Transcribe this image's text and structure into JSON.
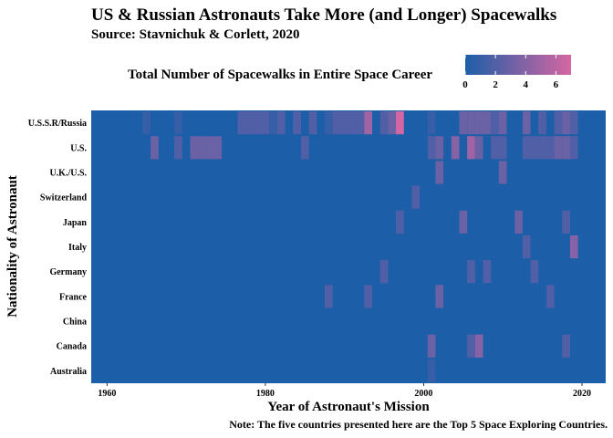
{
  "chart_data": {
    "type": "heatmap",
    "title": "US & Russian Astronauts Take More (and Longer) Spacewalks",
    "subtitle": "Source: Stavnichuk & Corlett, 2020",
    "xlabel": "Year of Astronaut's Mission",
    "ylabel": "Nationality of Astronaut",
    "note": "Note: The five countries presented here are the Top 5 Space Exploring Countries.",
    "legend": {
      "title": "Total Number of Spacewalks in Entire Space Career",
      "placement": "top",
      "ticks": [
        0,
        2,
        4,
        6
      ],
      "range": [
        0,
        7
      ],
      "low_color": "#1c5ea8",
      "high_color": "#d566a2"
    },
    "xlim": [
      1958,
      2023
    ],
    "x_ticks": [
      1960,
      1980,
      2000,
      2020
    ],
    "categories": [
      "Australia",
      "Canada",
      "China",
      "France",
      "Germany",
      "Italy",
      "Japan",
      "Switzerland",
      "U.K./U.S.",
      "U.S.",
      "U.S.S.R/Russia"
    ],
    "background_value": 0,
    "cells": [
      {
        "country": "U.S.S.R/Russia",
        "year": 1965,
        "value": 1
      },
      {
        "country": "U.S.S.R/Russia",
        "year": 1969,
        "value": 1
      },
      {
        "country": "U.S.S.R/Russia",
        "year": 1977,
        "value": 2
      },
      {
        "country": "U.S.S.R/Russia",
        "year": 1978,
        "value": 2
      },
      {
        "country": "U.S.S.R/Russia",
        "year": 1979,
        "value": 2
      },
      {
        "country": "U.S.S.R/Russia",
        "year": 1980,
        "value": 2
      },
      {
        "country": "U.S.S.R/Russia",
        "year": 1981,
        "value": 1
      },
      {
        "country": "U.S.S.R/Russia",
        "year": 1982,
        "value": 2
      },
      {
        "country": "U.S.S.R/Russia",
        "year": 1984,
        "value": 2
      },
      {
        "country": "U.S.S.R/Russia",
        "year": 1986,
        "value": 2
      },
      {
        "country": "U.S.S.R/Russia",
        "year": 1988,
        "value": 1
      },
      {
        "country": "U.S.S.R/Russia",
        "year": 1989,
        "value": 2
      },
      {
        "country": "U.S.S.R/Russia",
        "year": 1990,
        "value": 2
      },
      {
        "country": "U.S.S.R/Russia",
        "year": 1991,
        "value": 2
      },
      {
        "country": "U.S.S.R/Russia",
        "year": 1992,
        "value": 2
      },
      {
        "country": "U.S.S.R/Russia",
        "year": 1993,
        "value": 5
      },
      {
        "country": "U.S.S.R/Russia",
        "year": 1995,
        "value": 2
      },
      {
        "country": "U.S.S.R/Russia",
        "year": 1996,
        "value": 3
      },
      {
        "country": "U.S.S.R/Russia",
        "year": 1997,
        "value": 7
      },
      {
        "country": "U.S.S.R/Russia",
        "year": 2001,
        "value": 1
      },
      {
        "country": "U.S.S.R/Russia",
        "year": 2005,
        "value": 3
      },
      {
        "country": "U.S.S.R/Russia",
        "year": 2006,
        "value": 3
      },
      {
        "country": "U.S.S.R/Russia",
        "year": 2007,
        "value": 3
      },
      {
        "country": "U.S.S.R/Russia",
        "year": 2008,
        "value": 3
      },
      {
        "country": "U.S.S.R/Russia",
        "year": 2009,
        "value": 2
      },
      {
        "country": "U.S.S.R/Russia",
        "year": 2010,
        "value": 3
      },
      {
        "country": "U.S.S.R/Russia",
        "year": 2013,
        "value": 3
      },
      {
        "country": "U.S.S.R/Russia",
        "year": 2015,
        "value": 2
      },
      {
        "country": "U.S.S.R/Russia",
        "year": 2017,
        "value": 2
      },
      {
        "country": "U.S.S.R/Russia",
        "year": 2018,
        "value": 3
      },
      {
        "country": "U.S.S.R/Russia",
        "year": 2019,
        "value": 2
      },
      {
        "country": "U.S.",
        "year": 1966,
        "value": 3
      },
      {
        "country": "U.S.",
        "year": 1969,
        "value": 2
      },
      {
        "country": "U.S.",
        "year": 1971,
        "value": 3
      },
      {
        "country": "U.S.",
        "year": 1972,
        "value": 3
      },
      {
        "country": "U.S.",
        "year": 1973,
        "value": 3
      },
      {
        "country": "U.S.",
        "year": 1974,
        "value": 3
      },
      {
        "country": "U.S.",
        "year": 1985,
        "value": 2
      },
      {
        "country": "U.S.",
        "year": 2001,
        "value": 2
      },
      {
        "country": "U.S.",
        "year": 2002,
        "value": 3
      },
      {
        "country": "U.S.",
        "year": 2004,
        "value": 4
      },
      {
        "country": "U.S.",
        "year": 2006,
        "value": 5
      },
      {
        "country": "U.S.",
        "year": 2007,
        "value": 3
      },
      {
        "country": "U.S.",
        "year": 2009,
        "value": 2
      },
      {
        "country": "U.S.",
        "year": 2010,
        "value": 2
      },
      {
        "country": "U.S.",
        "year": 2013,
        "value": 2
      },
      {
        "country": "U.S.",
        "year": 2014,
        "value": 2
      },
      {
        "country": "U.S.",
        "year": 2015,
        "value": 2
      },
      {
        "country": "U.S.",
        "year": 2016,
        "value": 2
      },
      {
        "country": "U.S.",
        "year": 2017,
        "value": 3
      },
      {
        "country": "U.S.",
        "year": 2018,
        "value": 3
      },
      {
        "country": "U.S.",
        "year": 2019,
        "value": 2
      },
      {
        "country": "U.K./U.S.",
        "year": 2002,
        "value": 3
      },
      {
        "country": "U.K./U.S.",
        "year": 2010,
        "value": 3
      },
      {
        "country": "Switzerland",
        "year": 1999,
        "value": 2
      },
      {
        "country": "Japan",
        "year": 1997,
        "value": 2
      },
      {
        "country": "Japan",
        "year": 2005,
        "value": 3
      },
      {
        "country": "Japan",
        "year": 2012,
        "value": 3
      },
      {
        "country": "Japan",
        "year": 2018,
        "value": 2
      },
      {
        "country": "Italy",
        "year": 2013,
        "value": 2
      },
      {
        "country": "Italy",
        "year": 2019,
        "value": 4
      },
      {
        "country": "Germany",
        "year": 1995,
        "value": 2
      },
      {
        "country": "Germany",
        "year": 2006,
        "value": 2
      },
      {
        "country": "Germany",
        "year": 2008,
        "value": 2
      },
      {
        "country": "Germany",
        "year": 2014,
        "value": 2
      },
      {
        "country": "France",
        "year": 1988,
        "value": 2
      },
      {
        "country": "France",
        "year": 1993,
        "value": 2
      },
      {
        "country": "France",
        "year": 2002,
        "value": 3
      },
      {
        "country": "France",
        "year": 2016,
        "value": 2
      },
      {
        "country": "Canada",
        "year": 2001,
        "value": 3
      },
      {
        "country": "Canada",
        "year": 2006,
        "value": 2
      },
      {
        "country": "Canada",
        "year": 2007,
        "value": 4
      },
      {
        "country": "Canada",
        "year": 2018,
        "value": 2
      },
      {
        "country": "Australia",
        "year": 2001,
        "value": 1
      }
    ]
  }
}
